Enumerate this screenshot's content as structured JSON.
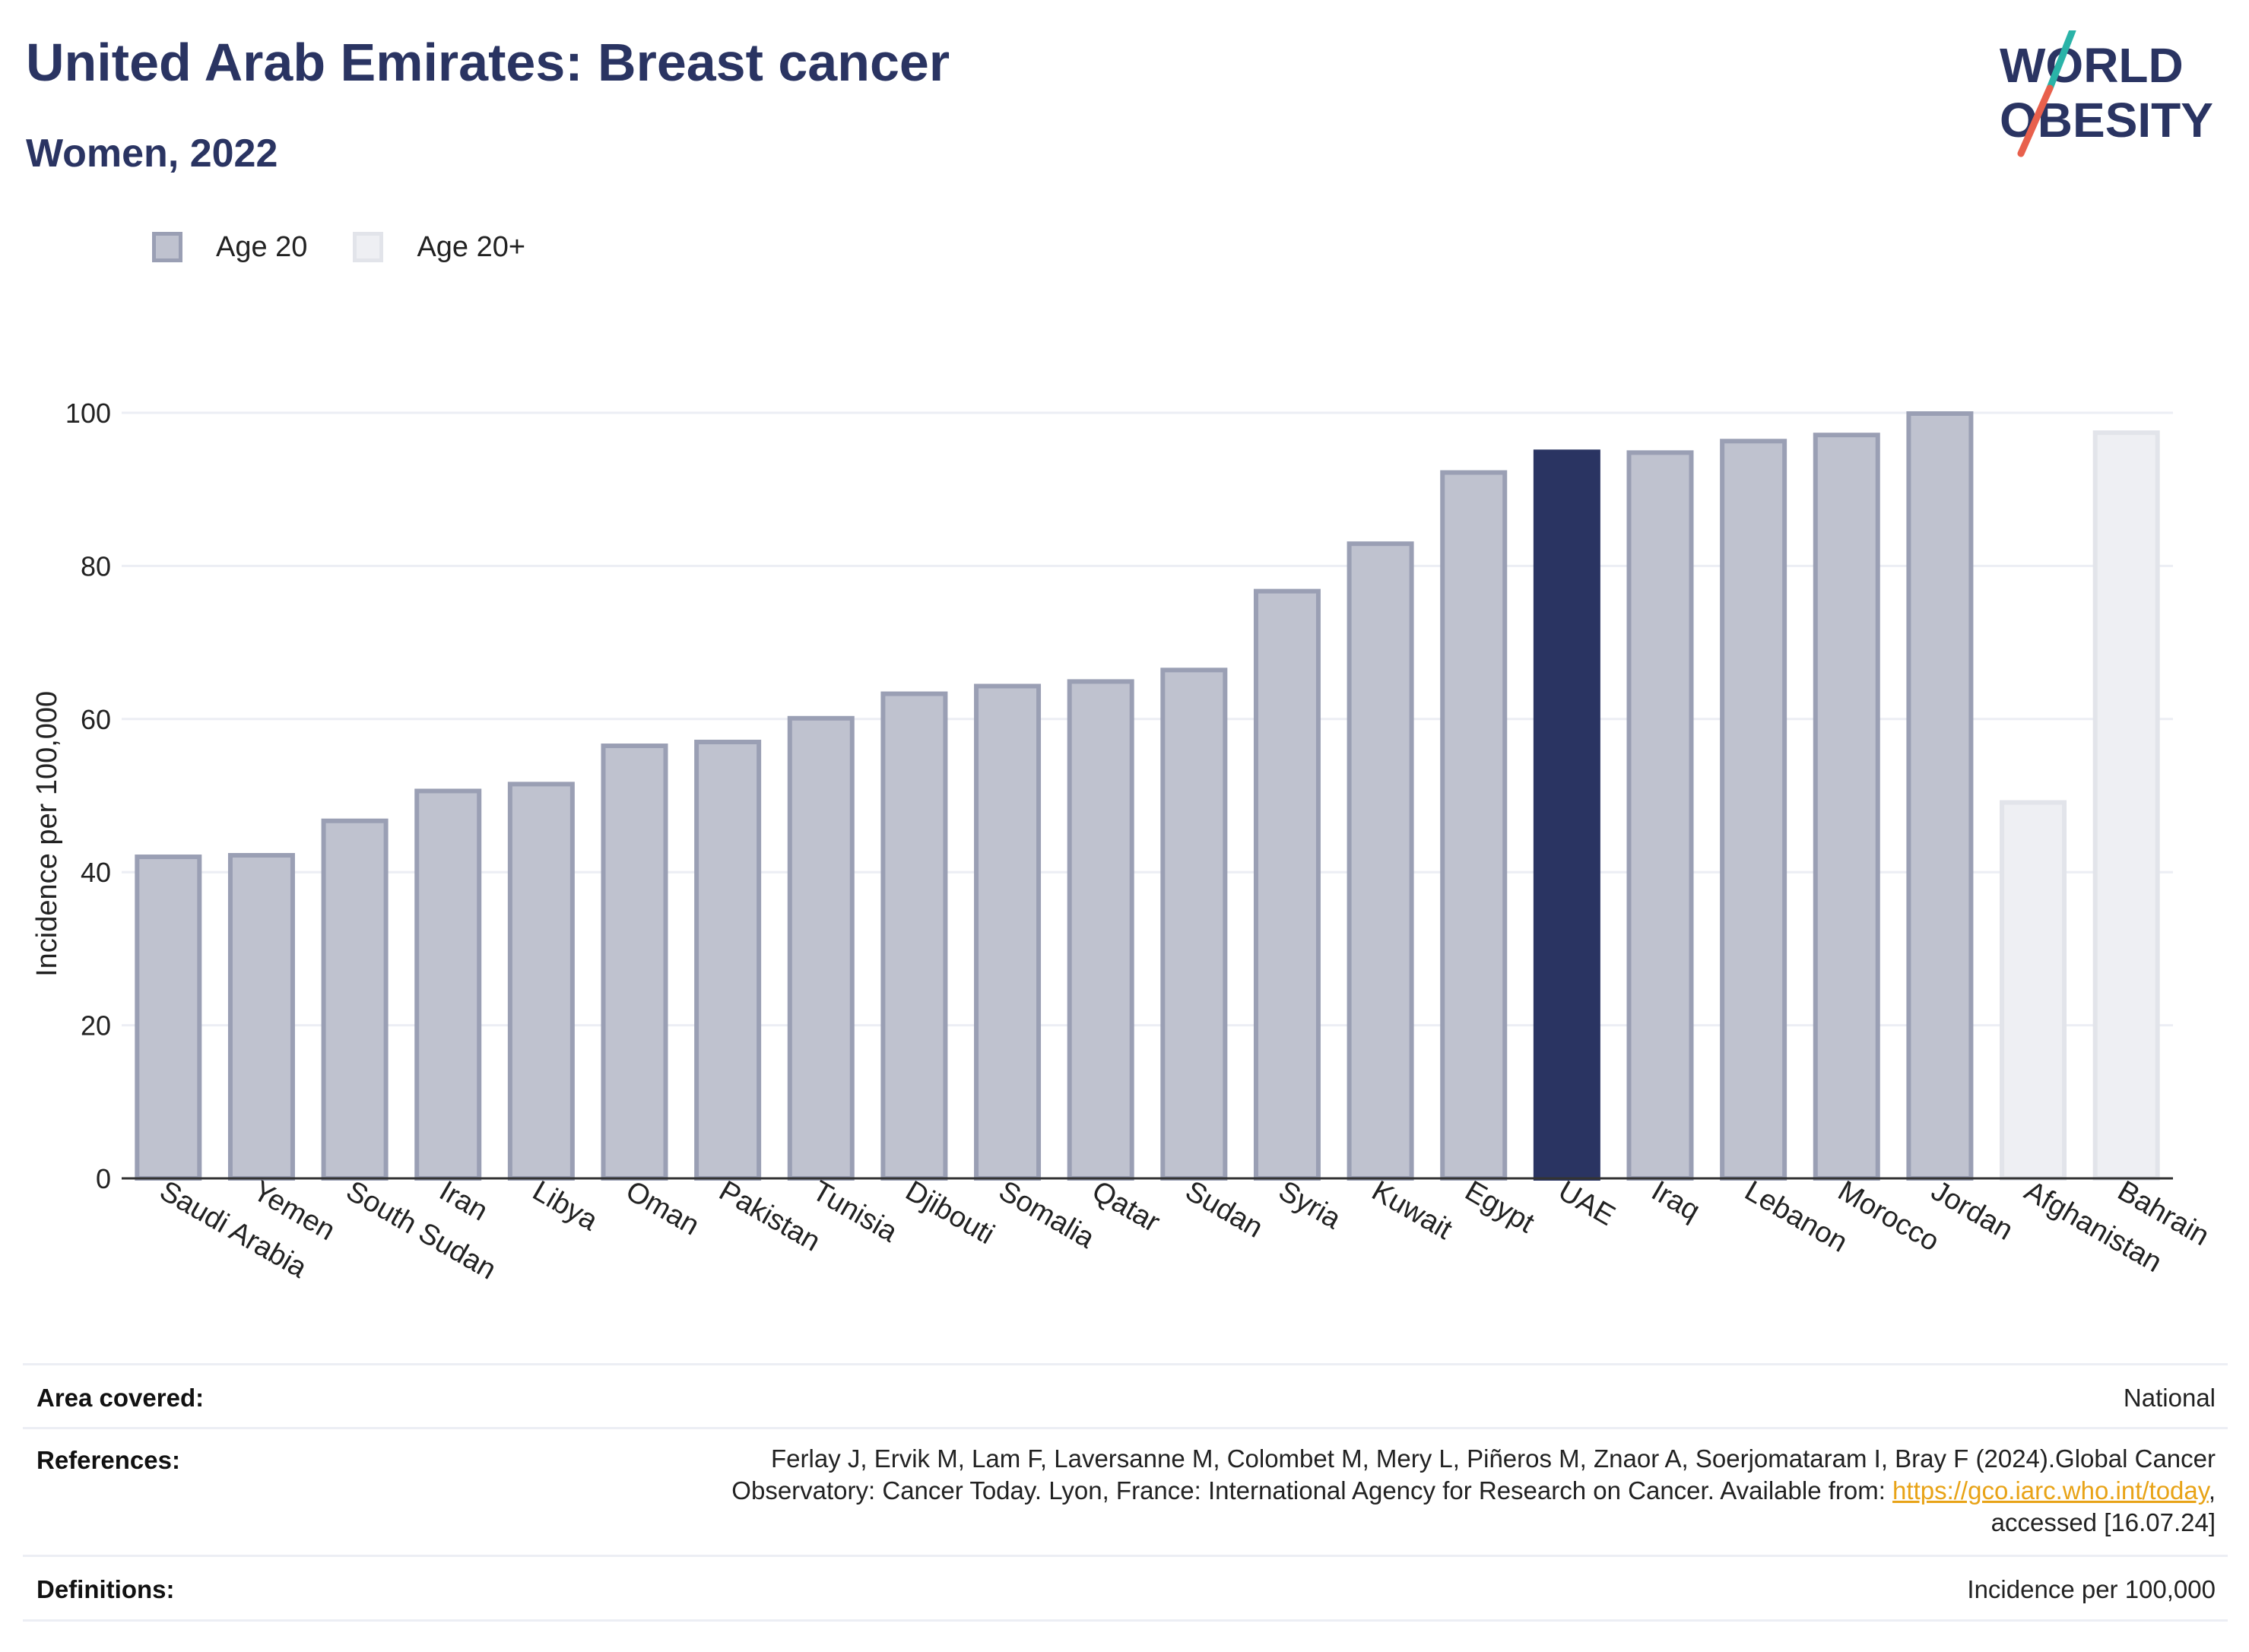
{
  "header": {
    "title": "United Arab Emirates: Breast cancer",
    "subtitle": "Women, 2022"
  },
  "logo": {
    "line1": "WORLD",
    "line2": "OBESITY",
    "colors": {
      "text": "#2a3462",
      "slash_top": "#2ab3a8",
      "slash_bottom": "#e8604c"
    }
  },
  "legend": {
    "items": [
      {
        "label": "Age 20",
        "fill": "#bfc2cf",
        "stroke": "#9a9fb4"
      },
      {
        "label": "Age 20+",
        "fill": "#eeeff3",
        "stroke": "#e2e4ea"
      }
    ]
  },
  "chart_data": {
    "type": "bar",
    "title": "United Arab Emirates: Breast cancer",
    "subtitle": "Women, 2022",
    "xlabel": "",
    "ylabel": "Incidence per 100,000",
    "ylim": [
      0,
      110
    ],
    "yticks": [
      0,
      20,
      40,
      60,
      80,
      100
    ],
    "grid": true,
    "categories": [
      "Saudi Arabia",
      "Yemen",
      "South Sudan",
      "Iran",
      "Libya",
      "Oman",
      "Pakistan",
      "Tunisia",
      "Djibouti",
      "Somalia",
      "Qatar",
      "Sudan",
      "Syria",
      "Kuwait",
      "Egypt",
      "UAE",
      "Iraq",
      "Lebanon",
      "Morocco",
      "Jordan",
      "Afghanistan",
      "Bahrain"
    ],
    "values": [
      42.3,
      42.5,
      47.0,
      50.9,
      51.8,
      56.8,
      57.3,
      60.4,
      63.6,
      64.6,
      65.2,
      66.7,
      77.0,
      83.2,
      92.5,
      95.2,
      95.1,
      96.6,
      97.4,
      100.2,
      49.4,
      97.7
    ],
    "groups": [
      "Age 20",
      "Age 20",
      "Age 20",
      "Age 20",
      "Age 20",
      "Age 20",
      "Age 20",
      "Age 20",
      "Age 20",
      "Age 20",
      "Age 20",
      "Age 20",
      "Age 20",
      "Age 20",
      "Age 20",
      "Age 20",
      "Age 20",
      "Age 20",
      "Age 20",
      "Age 20",
      "Age 20+",
      "Age 20+"
    ],
    "highlight": "UAE",
    "colors": {
      "age20_fill": "#bfc2cf",
      "age20_stroke": "#9a9fb4",
      "age20plus_fill": "#eeeff3",
      "age20plus_stroke": "#e2e4ea",
      "highlight": "#2a3462"
    }
  },
  "info": {
    "area_label": "Area covered:",
    "area_value": "National",
    "references_label": "References:",
    "references_line1": "Ferlay J, Ervik M, Lam F, Laversanne M, Colombet M, Mery L, Piñeros M, Znaor A, Soerjomataram I, Bray F (2024).Global Cancer",
    "references_line2_pre": "Observatory: Cancer Today. Lyon, France: International Agency for Research on Cancer. Available from: ",
    "references_link": "https://gco.iarc.who.int/today",
    "references_line2_post": ",",
    "references_line3": "accessed [16.07.24]",
    "definitions_label": "Definitions:",
    "definitions_value": "Incidence per 100,000"
  }
}
